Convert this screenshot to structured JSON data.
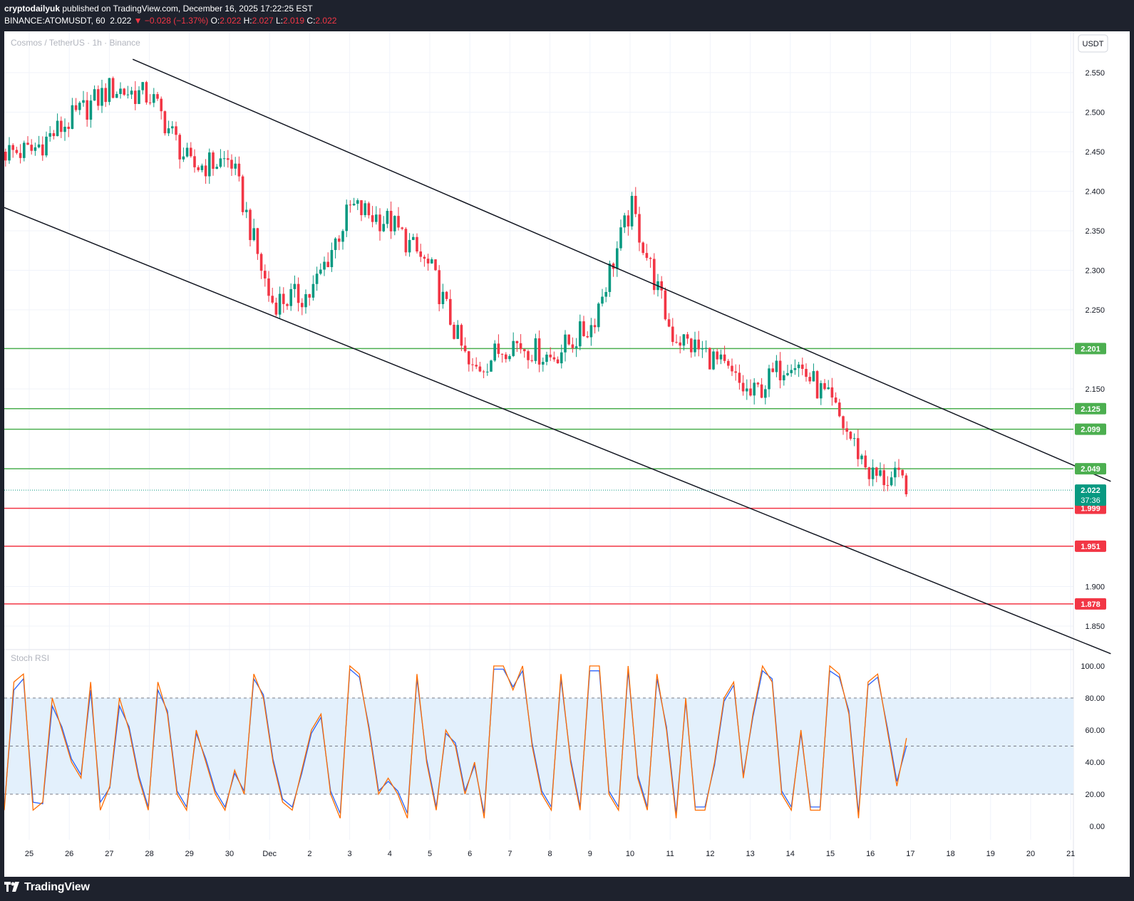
{
  "header": {
    "author": "cryptodailyuk",
    "published": " published on TradingView.com, December 16, 2025 17:22:25 EST",
    "symbol": "BINANCE:ATOMUSDT, 60",
    "price": "2.022",
    "change": "▼ −0.028 (−1.37%)",
    "o_label": "O:",
    "o_val": "2.022",
    "h_label": "H:",
    "h_val": "2.027",
    "l_label": "L:",
    "l_val": "2.019",
    "c_label": "C:",
    "c_val": "2.022"
  },
  "legend": "Cosmos / TetherUS · 1h · Binance",
  "currency_button": "USDT",
  "stoch_label": "Stoch RSI",
  "countdown": "37:36",
  "footer": {
    "brand": "TradingView"
  },
  "colors": {
    "up": "#089981",
    "down": "#f23645",
    "support": "#4caf50",
    "stoch_k": "#2962ff",
    "stoch_d": "#ff6d00",
    "band": "#e3f0fc"
  },
  "chart_data": [
    {
      "type": "candlestick",
      "xlabel": "",
      "ylabel": "",
      "x_ticks": [
        "25",
        "26",
        "27",
        "28",
        "29",
        "30",
        "Dec",
        "2",
        "3",
        "4",
        "5",
        "6",
        "7",
        "8",
        "9",
        "10",
        "11",
        "12",
        "13",
        "14",
        "15",
        "16",
        "17",
        "18",
        "19",
        "20",
        "21"
      ],
      "y_ticks": [
        "2.550",
        "2.500",
        "2.450",
        "2.400",
        "2.350",
        "2.300",
        "2.250",
        "2.150",
        "1.900",
        "1.850"
      ],
      "ylim": [
        1.825,
        2.6
      ],
      "series": [
        {
          "values_at_ticks": [
            2.45,
            2.49,
            2.53,
            2.52,
            2.43,
            2.44,
            2.26,
            2.27,
            2.38,
            2.36,
            2.3,
            2.17,
            2.21,
            2.19,
            2.23,
            2.38,
            2.22,
            2.19,
            2.14,
            2.19,
            2.13,
            2.04,
            2.03
          ]
        }
      ],
      "last_price": 2.022,
      "trendlines": [
        {
          "from": [
            "Nov 24",
            2.387
          ],
          "to": [
            "Dec 21",
            1.815
          ]
        },
        {
          "from": [
            "Nov 27 14:00",
            2.567
          ],
          "to": [
            "Dec 21",
            2.033
          ]
        }
      ],
      "horizontal_levels": [
        {
          "value": 2.201,
          "label": "2.201",
          "kind": "support"
        },
        {
          "value": 2.125,
          "label": "2.125",
          "kind": "support"
        },
        {
          "value": 2.099,
          "label": "2.099",
          "kind": "support"
        },
        {
          "value": 2.049,
          "label": "2.049",
          "kind": "support"
        },
        {
          "value": 1.999,
          "label": "1.999",
          "kind": "resistance"
        },
        {
          "value": 1.951,
          "label": "1.951",
          "kind": "resistance"
        },
        {
          "value": 1.878,
          "label": "1.878",
          "kind": "resistance"
        }
      ],
      "last_price_label": "2.022"
    },
    {
      "type": "line",
      "title": "Stoch RSI",
      "y_ticks": [
        "100.00",
        "80.00",
        "60.00",
        "40.00",
        "20.00",
        "0.00"
      ],
      "ylim": [
        0,
        100
      ],
      "band": [
        20,
        80
      ],
      "midline": 50,
      "series": [
        {
          "values": [
            10,
            90,
            95,
            10,
            15,
            80,
            60,
            40,
            30,
            90,
            10,
            25,
            80,
            60,
            30,
            10,
            90,
            70,
            20,
            10,
            60,
            40,
            20,
            10,
            35,
            20,
            95,
            80,
            40,
            15,
            10,
            35,
            60,
            70,
            20,
            5,
            100,
            95,
            60,
            20,
            30,
            20,
            5,
            95,
            40,
            10,
            60,
            50,
            20,
            40,
            5,
            100,
            100,
            85,
            100,
            50,
            20,
            10,
            95,
            40,
            10,
            100,
            100,
            20,
            10,
            100,
            30,
            10,
            95,
            60,
            5,
            80,
            10,
            10,
            40,
            80,
            90,
            30,
            70,
            100,
            90,
            20,
            10,
            60,
            10,
            10,
            100,
            95,
            70,
            5,
            90,
            95,
            60,
            25,
            55
          ]
        },
        {
          "values": [
            12,
            85,
            92,
            15,
            14,
            75,
            62,
            42,
            32,
            85,
            15,
            24,
            75,
            62,
            32,
            12,
            85,
            72,
            22,
            12,
            58,
            42,
            22,
            12,
            33,
            22,
            92,
            82,
            42,
            17,
            12,
            33,
            58,
            68,
            22,
            8,
            98,
            93,
            62,
            22,
            28,
            22,
            8,
            92,
            42,
            12,
            58,
            52,
            22,
            38,
            8,
            98,
            98,
            87,
            97,
            52,
            22,
            12,
            92,
            42,
            12,
            97,
            97,
            22,
            12,
            97,
            32,
            12,
            92,
            62,
            8,
            78,
            12,
            12,
            38,
            78,
            88,
            32,
            68,
            97,
            92,
            22,
            12,
            58,
            12,
            12,
            97,
            93,
            72,
            8,
            88,
            93,
            62,
            28,
            50
          ]
        }
      ]
    }
  ]
}
